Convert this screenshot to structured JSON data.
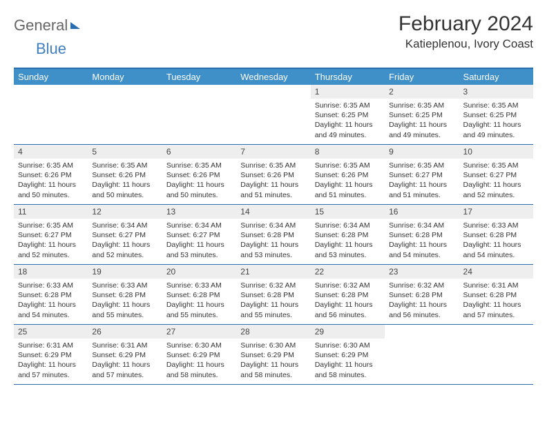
{
  "logo": {
    "text1": "General",
    "text2": "Blue"
  },
  "title": "February 2024",
  "location": "Katieplenou, Ivory Coast",
  "dow": [
    "Sunday",
    "Monday",
    "Tuesday",
    "Wednesday",
    "Thursday",
    "Friday",
    "Saturday"
  ],
  "colors": {
    "header_bg": "#3f8fc9",
    "border": "#2a6db0",
    "daynum_bg": "#eeeeee",
    "text": "#333333"
  },
  "weeks": [
    [
      {
        "n": "",
        "sr": "",
        "ss": "",
        "dl": ""
      },
      {
        "n": "",
        "sr": "",
        "ss": "",
        "dl": ""
      },
      {
        "n": "",
        "sr": "",
        "ss": "",
        "dl": ""
      },
      {
        "n": "",
        "sr": "",
        "ss": "",
        "dl": ""
      },
      {
        "n": "1",
        "sr": "Sunrise: 6:35 AM",
        "ss": "Sunset: 6:25 PM",
        "dl": "Daylight: 11 hours and 49 minutes."
      },
      {
        "n": "2",
        "sr": "Sunrise: 6:35 AM",
        "ss": "Sunset: 6:25 PM",
        "dl": "Daylight: 11 hours and 49 minutes."
      },
      {
        "n": "3",
        "sr": "Sunrise: 6:35 AM",
        "ss": "Sunset: 6:25 PM",
        "dl": "Daylight: 11 hours and 49 minutes."
      }
    ],
    [
      {
        "n": "4",
        "sr": "Sunrise: 6:35 AM",
        "ss": "Sunset: 6:26 PM",
        "dl": "Daylight: 11 hours and 50 minutes."
      },
      {
        "n": "5",
        "sr": "Sunrise: 6:35 AM",
        "ss": "Sunset: 6:26 PM",
        "dl": "Daylight: 11 hours and 50 minutes."
      },
      {
        "n": "6",
        "sr": "Sunrise: 6:35 AM",
        "ss": "Sunset: 6:26 PM",
        "dl": "Daylight: 11 hours and 50 minutes."
      },
      {
        "n": "7",
        "sr": "Sunrise: 6:35 AM",
        "ss": "Sunset: 6:26 PM",
        "dl": "Daylight: 11 hours and 51 minutes."
      },
      {
        "n": "8",
        "sr": "Sunrise: 6:35 AM",
        "ss": "Sunset: 6:26 PM",
        "dl": "Daylight: 11 hours and 51 minutes."
      },
      {
        "n": "9",
        "sr": "Sunrise: 6:35 AM",
        "ss": "Sunset: 6:27 PM",
        "dl": "Daylight: 11 hours and 51 minutes."
      },
      {
        "n": "10",
        "sr": "Sunrise: 6:35 AM",
        "ss": "Sunset: 6:27 PM",
        "dl": "Daylight: 11 hours and 52 minutes."
      }
    ],
    [
      {
        "n": "11",
        "sr": "Sunrise: 6:35 AM",
        "ss": "Sunset: 6:27 PM",
        "dl": "Daylight: 11 hours and 52 minutes."
      },
      {
        "n": "12",
        "sr": "Sunrise: 6:34 AM",
        "ss": "Sunset: 6:27 PM",
        "dl": "Daylight: 11 hours and 52 minutes."
      },
      {
        "n": "13",
        "sr": "Sunrise: 6:34 AM",
        "ss": "Sunset: 6:27 PM",
        "dl": "Daylight: 11 hours and 53 minutes."
      },
      {
        "n": "14",
        "sr": "Sunrise: 6:34 AM",
        "ss": "Sunset: 6:28 PM",
        "dl": "Daylight: 11 hours and 53 minutes."
      },
      {
        "n": "15",
        "sr": "Sunrise: 6:34 AM",
        "ss": "Sunset: 6:28 PM",
        "dl": "Daylight: 11 hours and 53 minutes."
      },
      {
        "n": "16",
        "sr": "Sunrise: 6:34 AM",
        "ss": "Sunset: 6:28 PM",
        "dl": "Daylight: 11 hours and 54 minutes."
      },
      {
        "n": "17",
        "sr": "Sunrise: 6:33 AM",
        "ss": "Sunset: 6:28 PM",
        "dl": "Daylight: 11 hours and 54 minutes."
      }
    ],
    [
      {
        "n": "18",
        "sr": "Sunrise: 6:33 AM",
        "ss": "Sunset: 6:28 PM",
        "dl": "Daylight: 11 hours and 54 minutes."
      },
      {
        "n": "19",
        "sr": "Sunrise: 6:33 AM",
        "ss": "Sunset: 6:28 PM",
        "dl": "Daylight: 11 hours and 55 minutes."
      },
      {
        "n": "20",
        "sr": "Sunrise: 6:33 AM",
        "ss": "Sunset: 6:28 PM",
        "dl": "Daylight: 11 hours and 55 minutes."
      },
      {
        "n": "21",
        "sr": "Sunrise: 6:32 AM",
        "ss": "Sunset: 6:28 PM",
        "dl": "Daylight: 11 hours and 55 minutes."
      },
      {
        "n": "22",
        "sr": "Sunrise: 6:32 AM",
        "ss": "Sunset: 6:28 PM",
        "dl": "Daylight: 11 hours and 56 minutes."
      },
      {
        "n": "23",
        "sr": "Sunrise: 6:32 AM",
        "ss": "Sunset: 6:28 PM",
        "dl": "Daylight: 11 hours and 56 minutes."
      },
      {
        "n": "24",
        "sr": "Sunrise: 6:31 AM",
        "ss": "Sunset: 6:28 PM",
        "dl": "Daylight: 11 hours and 57 minutes."
      }
    ],
    [
      {
        "n": "25",
        "sr": "Sunrise: 6:31 AM",
        "ss": "Sunset: 6:29 PM",
        "dl": "Daylight: 11 hours and 57 minutes."
      },
      {
        "n": "26",
        "sr": "Sunrise: 6:31 AM",
        "ss": "Sunset: 6:29 PM",
        "dl": "Daylight: 11 hours and 57 minutes."
      },
      {
        "n": "27",
        "sr": "Sunrise: 6:30 AM",
        "ss": "Sunset: 6:29 PM",
        "dl": "Daylight: 11 hours and 58 minutes."
      },
      {
        "n": "28",
        "sr": "Sunrise: 6:30 AM",
        "ss": "Sunset: 6:29 PM",
        "dl": "Daylight: 11 hours and 58 minutes."
      },
      {
        "n": "29",
        "sr": "Sunrise: 6:30 AM",
        "ss": "Sunset: 6:29 PM",
        "dl": "Daylight: 11 hours and 58 minutes."
      },
      {
        "n": "",
        "sr": "",
        "ss": "",
        "dl": ""
      },
      {
        "n": "",
        "sr": "",
        "ss": "",
        "dl": ""
      }
    ]
  ]
}
